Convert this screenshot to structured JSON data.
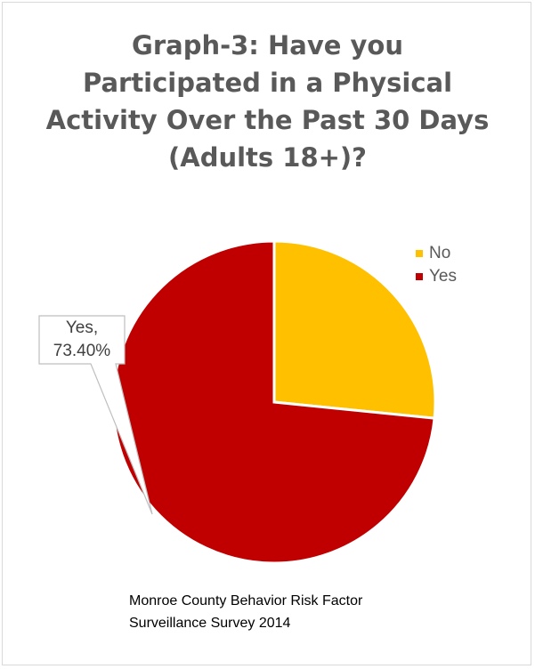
{
  "chart_data": {
    "type": "pie",
    "title_lines": [
      "Graph-3: Have you",
      "Participated in a Physical",
      "Activity Over the Past 30 Days",
      "(Adults 18+)?"
    ],
    "categories": [
      "No",
      "Yes"
    ],
    "values": [
      26.6,
      73.4
    ],
    "colors": [
      "#FFC000",
      "#C00000"
    ],
    "legend_position": "top-right",
    "data_label": {
      "category": "Yes",
      "lines": [
        "Yes,",
        "73.40%"
      ]
    },
    "source_lines": [
      "Monroe County Behavior Risk Factor",
      "Surveillance Survey 2014"
    ]
  }
}
